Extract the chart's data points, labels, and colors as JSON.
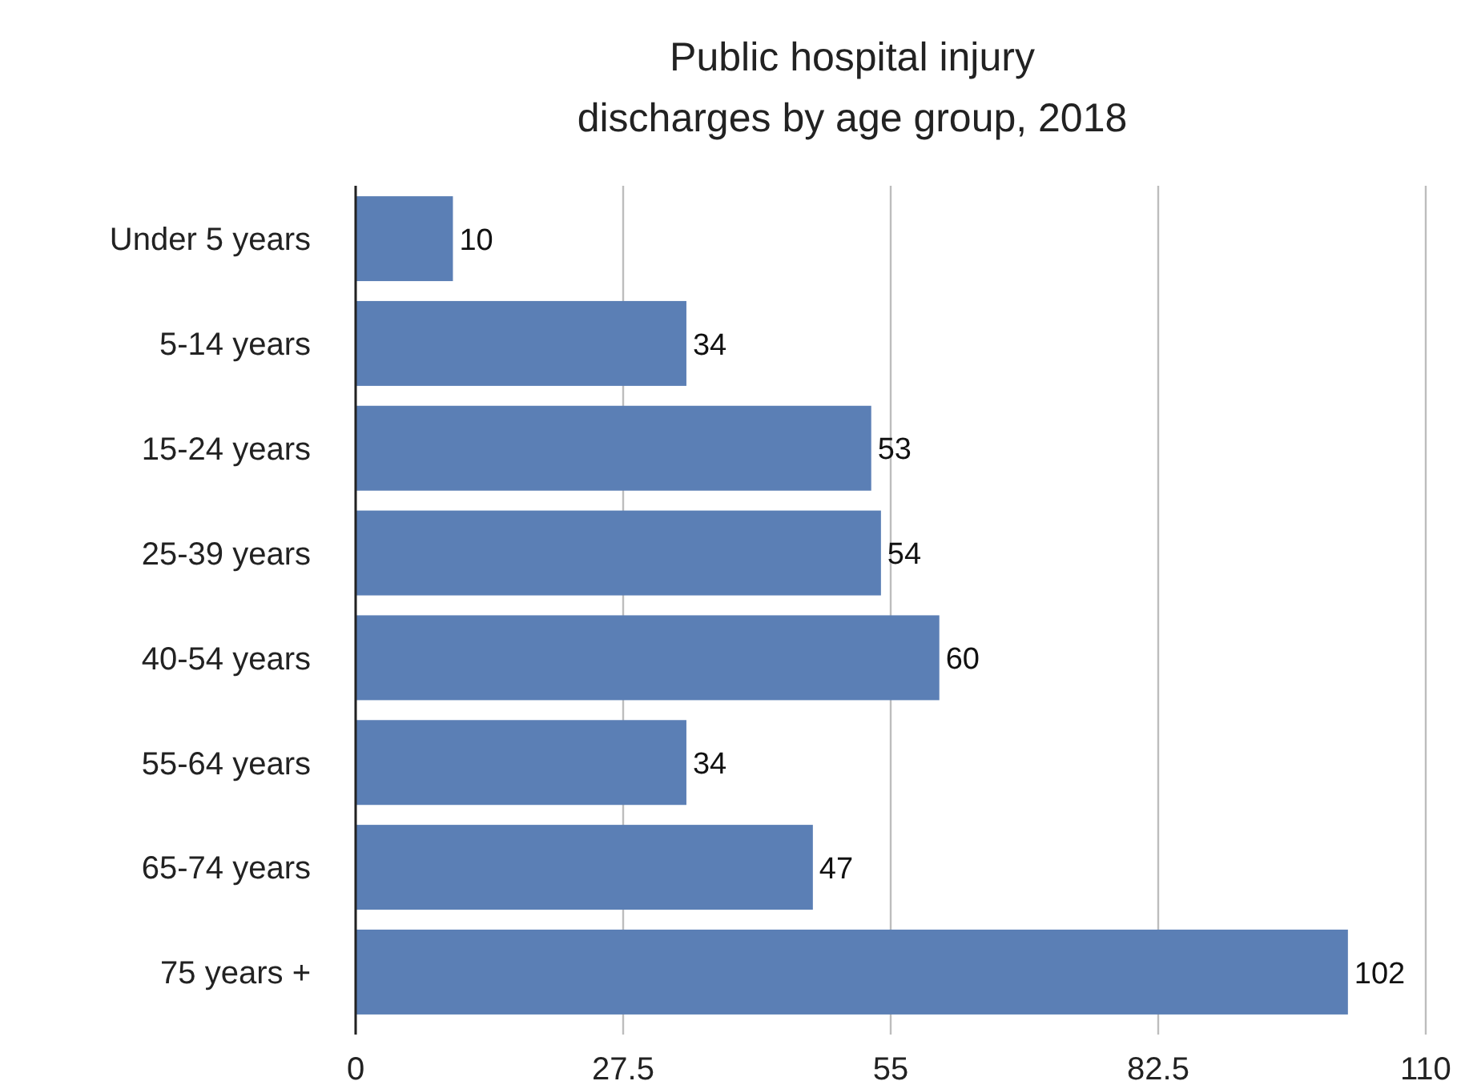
{
  "chart_data": {
    "type": "bar",
    "orientation": "horizontal",
    "title": "Public hospital injury discharges by age group, 2018",
    "categories": [
      "Under 5 years",
      "5-14 years",
      "15-24 years",
      "25-39 years",
      "40-54 years",
      "55-64 years",
      "65-74 years",
      "75 years +"
    ],
    "values": [
      10,
      34,
      53,
      54,
      60,
      34,
      47,
      102
    ],
    "color": "#5b7fb5",
    "xlim": [
      0,
      110
    ],
    "xticks": [
      0,
      27.5,
      55,
      82.5,
      110
    ],
    "grid": "x",
    "data_labels": true
  }
}
